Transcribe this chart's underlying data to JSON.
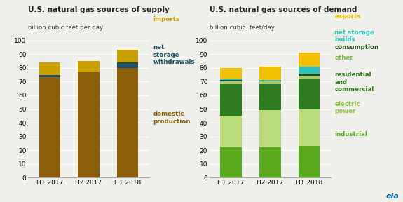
{
  "supply": {
    "title": "U.S. natural gas sources of supply",
    "ylabel": "billion cubic feet per day",
    "categories": [
      "H1 2017",
      "H2 2017",
      "H1 2018"
    ],
    "domestic_production": [
      73,
      77,
      80
    ],
    "net_storage_withdrawals": [
      2,
      0,
      4
    ],
    "imports": [
      9,
      8,
      9
    ],
    "colors": {
      "domestic_production": "#8B5E0A",
      "net_storage_withdrawals": "#1B4F6B",
      "imports": "#C9A000"
    },
    "ylim": [
      0,
      100
    ],
    "yticks": [
      0,
      10,
      20,
      30,
      40,
      50,
      60,
      70,
      80,
      90,
      100
    ]
  },
  "demand": {
    "title": "U.S. natural gas sources of demand",
    "ylabel": "billion cubic  feet/day",
    "categories": [
      "H1 2017",
      "H2 2017",
      "H1 2018"
    ],
    "industrial": [
      22,
      22,
      23
    ],
    "electric_power": [
      23,
      27,
      27
    ],
    "residential_commercial": [
      23,
      19,
      22
    ],
    "other": [
      2,
      2,
      2
    ],
    "consumption": [
      1,
      0.5,
      2
    ],
    "net_storage_builds": [
      1,
      0.5,
      5
    ],
    "exports": [
      8,
      10,
      10
    ],
    "colors": {
      "industrial": "#5AAB20",
      "electric_power": "#B8DC7A",
      "residential_commercial": "#2E7A1E",
      "other": "#A8C870",
      "consumption": "#1E4E10",
      "net_storage_builds": "#30C0C0",
      "exports": "#F0C000"
    },
    "ylim": [
      0,
      100
    ],
    "yticks": [
      0,
      10,
      20,
      30,
      40,
      50,
      60,
      70,
      80,
      90,
      100
    ]
  },
  "background_color": "#F0F0EB",
  "bar_width": 0.55,
  "grid_color": "#FFFFFF",
  "spine_color": "#AAAAAA",
  "supply_legend": [
    {
      "label": "imports",
      "color": "#C9A000",
      "text_color": "#C9A000"
    },
    {
      "label": "net\nstorage\nwithdrawals",
      "color": "#1B4F6B",
      "text_color": "#1B4F6B"
    },
    {
      "label": "domestic\nproduction",
      "color": "#8B5E0A",
      "text_color": "#8B5E0A"
    }
  ],
  "demand_legend": [
    {
      "label": "exports",
      "text_color": "#F0C000"
    },
    {
      "label": "net storage\nbuilds",
      "text_color": "#30C0C0"
    },
    {
      "label": "consumption",
      "text_color": "#1E4E10"
    },
    {
      "label": "other",
      "text_color": "#7AB840"
    },
    {
      "label": "residential\nand\ncommercial",
      "text_color": "#2E7A1E"
    },
    {
      "label": "electric\npower",
      "text_color": "#8EC840"
    },
    {
      "label": "industrial",
      "text_color": "#5AAB20"
    }
  ],
  "eia_color": "#006699"
}
